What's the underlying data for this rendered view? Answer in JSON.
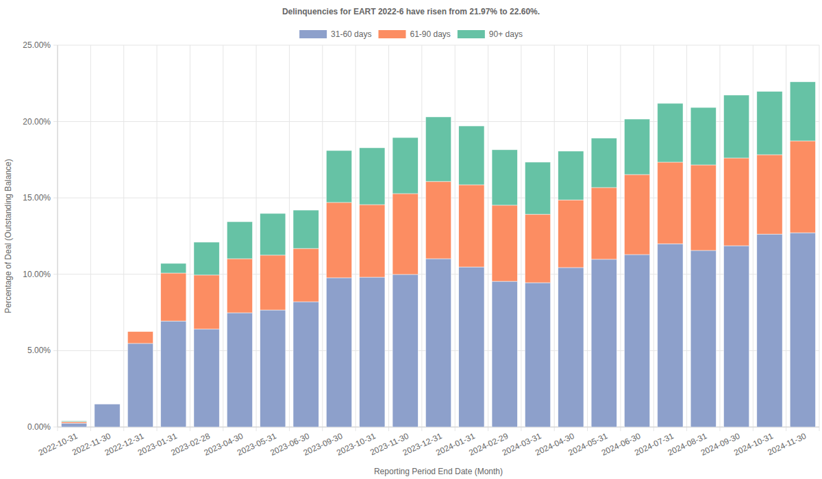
{
  "chart_data": {
    "type": "bar",
    "title": "Delinquencies for EART 2022-6 have risen from 21.97% to 22.60%.",
    "x_label": "Reporting Period End Date (Month)",
    "y_label": "Percentage of Deal (Outstanding Balance)",
    "categories": [
      "2022-10-31",
      "2022-11-30",
      "2022-12-31",
      "2023-01-31",
      "2023-02-28",
      "2023-04-30",
      "2023-05-31",
      "2023-06-30",
      "2023-09-30",
      "2023-10-31",
      "2023-11-30",
      "2023-12-31",
      "2024-01-31",
      "2024-02-29",
      "2024-03-31",
      "2024-04-30",
      "2024-05-31",
      "2024-06-30",
      "2024-07-31",
      "2024-08-31",
      "2024-09-30",
      "2024-10-31",
      "2024-11-30"
    ],
    "series": [
      {
        "name": "31-60 days",
        "color": "#8da0cb",
        "values": [
          0.25,
          1.5,
          5.47,
          6.94,
          6.41,
          7.48,
          7.66,
          8.2,
          9.77,
          9.81,
          9.99,
          11.02,
          10.48,
          9.54,
          9.45,
          10.44,
          10.98,
          11.29,
          12.0,
          11.56,
          11.87,
          12.63,
          12.72
        ]
      },
      {
        "name": "61-90 days",
        "color": "#fc8d62",
        "values": [
          0.1,
          0,
          0.78,
          3.14,
          3.54,
          3.54,
          3.59,
          3.49,
          4.93,
          4.75,
          5.29,
          5.06,
          5.38,
          4.98,
          4.48,
          4.43,
          4.7,
          5.24,
          5.34,
          5.6,
          5.74,
          5.2,
          6.01
        ]
      },
      {
        "name": "90+ days",
        "color": "#66c2a5",
        "values": [
          0.05,
          0,
          0,
          0.63,
          2.15,
          2.42,
          2.73,
          2.51,
          3.4,
          3.72,
          3.67,
          4.22,
          3.85,
          3.63,
          3.41,
          3.19,
          3.23,
          3.63,
          3.85,
          3.76,
          4.12,
          4.14,
          3.87
        ]
      }
    ],
    "ylim": [
      0,
      25
    ],
    "yticks": [
      {
        "value": 0,
        "label": "0.00%"
      },
      {
        "value": 5,
        "label": "5.00%"
      },
      {
        "value": 10,
        "label": "10.00%"
      },
      {
        "value": 15,
        "label": "15.00%"
      },
      {
        "value": 20,
        "label": "20.00%"
      },
      {
        "value": 25,
        "label": "25.00%"
      }
    ],
    "stacked": true,
    "grid": true,
    "legend": "top"
  }
}
